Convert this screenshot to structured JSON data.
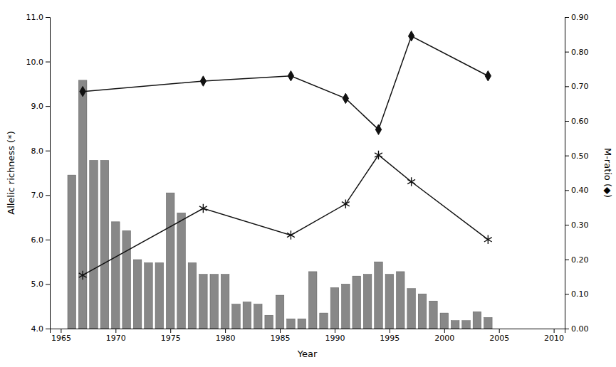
{
  "chart_data": {
    "type": "bar",
    "xlabel": "Year",
    "ylabel": "Allelic richness (*)",
    "y2label": "M-ratio (◆)",
    "grid": false,
    "xlim": [
      1964,
      2011
    ],
    "xticks": [
      1965,
      1970,
      1975,
      1980,
      1985,
      1990,
      1995,
      2000,
      2005,
      2010
    ],
    "ylim": [
      4.0,
      11.0
    ],
    "yticks": [
      {
        "value": 4.0,
        "label": "4.0"
      },
      {
        "value": 5.0,
        "label": "5.0"
      },
      {
        "value": 6.0,
        "label": "6.0"
      },
      {
        "value": 7.0,
        "label": "7.0"
      },
      {
        "value": 8.0,
        "label": "8.0"
      },
      {
        "value": 9.0,
        "label": "9.0"
      },
      {
        "value": 10.0,
        "label": "10.0"
      },
      {
        "value": 11.0,
        "label": "11.0"
      }
    ],
    "y2lim": [
      0.0,
      0.9
    ],
    "y2ticks": [
      {
        "value": 0.0,
        "label": "0.00"
      },
      {
        "value": 0.1,
        "label": "0.10"
      },
      {
        "value": 0.2,
        "label": "0.20"
      },
      {
        "value": 0.3,
        "label": "0.30"
      },
      {
        "value": 0.4,
        "label": "0.40"
      },
      {
        "value": 0.5,
        "label": "0.50"
      },
      {
        "value": 0.6,
        "label": "0.60"
      },
      {
        "value": 0.7,
        "label": "0.70"
      },
      {
        "value": 0.8,
        "label": "0.80"
      },
      {
        "value": 0.9,
        "label": "0.90"
      }
    ],
    "series": [
      {
        "type": "bar",
        "color": "#888888",
        "x": [
          1966,
          1967,
          1968,
          1969,
          1970,
          1971,
          1972,
          1973,
          1974,
          1975,
          1976,
          1977,
          1978,
          1979,
          1980,
          1981,
          1982,
          1983,
          1984,
          1985,
          1986,
          1987,
          1988,
          1989,
          1990,
          1991,
          1992,
          1993,
          1994,
          1995,
          1996,
          1997,
          1998,
          1999,
          2000,
          2001,
          2002,
          2003,
          2004
        ],
        "values": [
          7.45,
          9.58,
          7.78,
          7.78,
          6.4,
          6.2,
          5.55,
          5.48,
          5.48,
          7.05,
          6.6,
          5.48,
          5.22,
          5.22,
          5.22,
          4.55,
          4.6,
          4.55,
          4.3,
          4.75,
          4.22,
          4.22,
          5.28,
          4.35,
          4.92,
          5.0,
          5.18,
          5.22,
          5.5,
          5.22,
          5.28,
          4.9,
          4.78,
          4.62,
          4.35,
          4.18,
          4.18,
          4.38,
          4.25
        ]
      },
      {
        "type": "line",
        "marker": "asterisk",
        "color": "#111111",
        "x": [
          1967,
          1978,
          1986,
          1991,
          1994,
          1997,
          2004
        ],
        "values": [
          5.2,
          6.7,
          6.1,
          6.8,
          7.9,
          7.3,
          6.0
        ]
      },
      {
        "type": "line",
        "marker": "diamond",
        "color": "#111111",
        "axis": "y2",
        "x": [
          1967,
          1978,
          1986,
          1991,
          1994,
          1997,
          2004
        ],
        "values": [
          0.685,
          0.715,
          0.73,
          0.665,
          0.575,
          0.845,
          0.73
        ]
      }
    ]
  }
}
